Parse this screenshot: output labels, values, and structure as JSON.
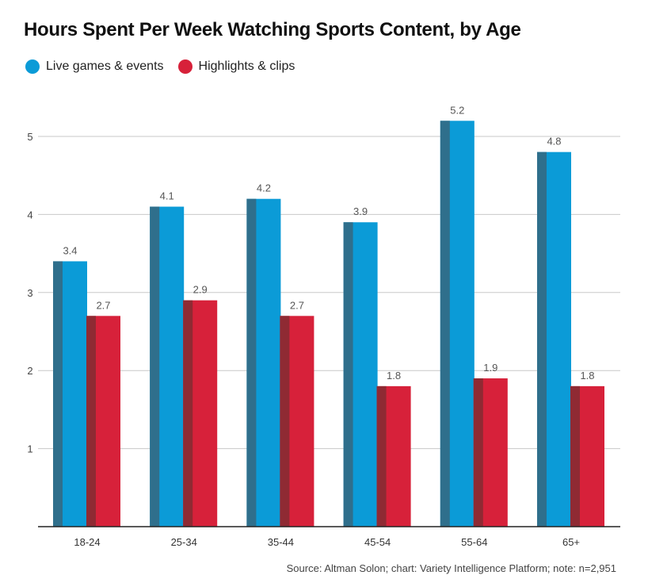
{
  "header": {
    "title": "Hours Spent Per Week Watching Sports Content, by Age"
  },
  "legend": [
    {
      "label": "Live games & events",
      "color": "#0b9bd7"
    },
    {
      "label": "Highlights  & clips",
      "color": "#d7213a"
    }
  ],
  "footer": {
    "source": "Source: Altman Solon; chart: Variety Intelligence Platform; note: n=2,951"
  },
  "chart_data": {
    "type": "bar",
    "title": "Hours Spent Per Week Watching Sports Content, by Age",
    "xlabel": "",
    "ylabel": "",
    "categories": [
      "18-24",
      "25-34",
      "35-44",
      "45-54",
      "55-64",
      "65+"
    ],
    "series": [
      {
        "name": "Live games & events",
        "values": [
          3.4,
          4.1,
          4.2,
          3.9,
          5.2,
          4.8
        ],
        "color": "#0b9bd7",
        "shade": "#2f6f8c"
      },
      {
        "name": "Highlights  & clips",
        "values": [
          2.7,
          2.9,
          2.7,
          1.8,
          1.9,
          1.8
        ],
        "color": "#d7213a",
        "shade": "#8f2a33"
      }
    ],
    "ylim": [
      0,
      5
    ],
    "yticks": [
      1,
      2,
      3,
      4,
      5
    ],
    "grid": true,
    "legend_position": "top-left",
    "data_labels": true
  }
}
